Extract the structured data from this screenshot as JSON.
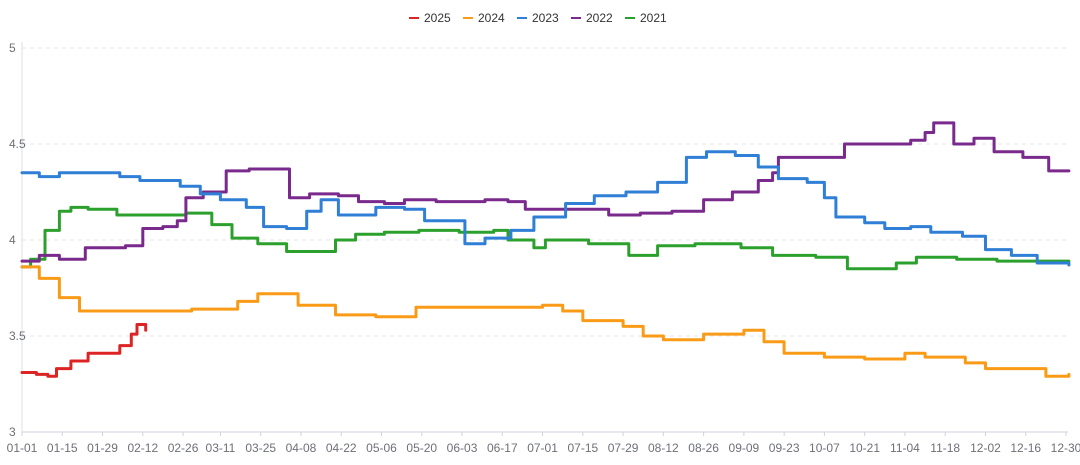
{
  "chart_data": {
    "type": "line",
    "title": "",
    "xlabel": "",
    "ylabel": "",
    "ylim": [
      3,
      5
    ],
    "yticks": [
      "3",
      "3.5",
      "4",
      "4.5",
      "5"
    ],
    "xticks": [
      "01-01",
      "01-15",
      "01-29",
      "02-12",
      "02-26",
      "03-11",
      "03-25",
      "04-08",
      "04-22",
      "05-06",
      "05-20",
      "06-03",
      "06-17",
      "07-01",
      "07-15",
      "07-29",
      "08-12",
      "08-26",
      "09-09",
      "09-23",
      "10-07",
      "10-21",
      "11-04",
      "11-18",
      "12-02",
      "12-16",
      "12-30"
    ],
    "grid": "horizontal dashed",
    "legend_position": "top-center",
    "series": [
      {
        "name": "2025",
        "color": "#dd2424",
        "points": [
          [
            "01-01",
            3.31
          ],
          [
            "01-06",
            3.3
          ],
          [
            "01-10",
            3.29
          ],
          [
            "01-13",
            3.33
          ],
          [
            "01-18",
            3.37
          ],
          [
            "01-24",
            3.41
          ],
          [
            "02-04",
            3.45
          ],
          [
            "02-08",
            3.51
          ],
          [
            "02-10",
            3.56
          ],
          [
            "02-13",
            3.53
          ]
        ]
      },
      {
        "name": "2024",
        "color": "#fa9b17",
        "points": [
          [
            "01-01",
            3.86
          ],
          [
            "01-07",
            3.8
          ],
          [
            "01-14",
            3.7
          ],
          [
            "01-21",
            3.63
          ],
          [
            "01-31",
            3.63
          ],
          [
            "02-29",
            3.64
          ],
          [
            "03-17",
            3.68
          ],
          [
            "03-24",
            3.72
          ],
          [
            "04-07",
            3.66
          ],
          [
            "04-20",
            3.61
          ],
          [
            "05-04",
            3.6
          ],
          [
            "05-18",
            3.65
          ],
          [
            "06-01",
            3.65
          ],
          [
            "06-15",
            3.65
          ],
          [
            "07-01",
            3.66
          ],
          [
            "07-08",
            3.63
          ],
          [
            "07-15",
            3.58
          ],
          [
            "07-29",
            3.55
          ],
          [
            "08-05",
            3.5
          ],
          [
            "08-12",
            3.48
          ],
          [
            "08-26",
            3.51
          ],
          [
            "09-09",
            3.53
          ],
          [
            "09-16",
            3.47
          ],
          [
            "09-23",
            3.41
          ],
          [
            "10-07",
            3.39
          ],
          [
            "10-21",
            3.38
          ],
          [
            "11-04",
            3.41
          ],
          [
            "11-11",
            3.39
          ],
          [
            "11-25",
            3.36
          ],
          [
            "12-02",
            3.33
          ],
          [
            "12-16",
            3.33
          ],
          [
            "12-23",
            3.29
          ],
          [
            "12-31",
            3.3
          ]
        ]
      },
      {
        "name": "2023",
        "color": "#2e7fd5",
        "points": [
          [
            "01-01",
            4.35
          ],
          [
            "01-07",
            4.33
          ],
          [
            "01-14",
            4.35
          ],
          [
            "01-28",
            4.35
          ],
          [
            "02-04",
            4.33
          ],
          [
            "02-11",
            4.31
          ],
          [
            "02-25",
            4.28
          ],
          [
            "03-04",
            4.24
          ],
          [
            "03-11",
            4.21
          ],
          [
            "03-20",
            4.17
          ],
          [
            "03-26",
            4.07
          ],
          [
            "04-03",
            4.06
          ],
          [
            "04-10",
            4.15
          ],
          [
            "04-15",
            4.21
          ],
          [
            "04-21",
            4.13
          ],
          [
            "05-04",
            4.17
          ],
          [
            "05-14",
            4.16
          ],
          [
            "05-21",
            4.1
          ],
          [
            "06-04",
            3.98
          ],
          [
            "06-11",
            4.01
          ],
          [
            "06-20",
            4.05
          ],
          [
            "06-28",
            4.12
          ],
          [
            "07-09",
            4.19
          ],
          [
            "07-19",
            4.23
          ],
          [
            "07-30",
            4.25
          ],
          [
            "08-10",
            4.3
          ],
          [
            "08-20",
            4.43
          ],
          [
            "08-27",
            4.46
          ],
          [
            "09-06",
            4.44
          ],
          [
            "09-14",
            4.38
          ],
          [
            "09-21",
            4.32
          ],
          [
            "10-01",
            4.3
          ],
          [
            "10-07",
            4.22
          ],
          [
            "10-11",
            4.12
          ],
          [
            "10-21",
            4.09
          ],
          [
            "10-28",
            4.06
          ],
          [
            "11-06",
            4.07
          ],
          [
            "11-13",
            4.04
          ],
          [
            "11-24",
            4.02
          ],
          [
            "12-02",
            3.95
          ],
          [
            "12-11",
            3.92
          ],
          [
            "12-20",
            3.88
          ],
          [
            "12-31",
            3.87
          ]
        ]
      },
      {
        "name": "2022",
        "color": "#7a2a8c",
        "points": [
          [
            "01-01",
            3.89
          ],
          [
            "01-07",
            3.92
          ],
          [
            "01-14",
            3.9
          ],
          [
            "01-23",
            3.96
          ],
          [
            "02-06",
            3.97
          ],
          [
            "02-12",
            4.06
          ],
          [
            "02-19",
            4.07
          ],
          [
            "02-24",
            4.1
          ],
          [
            "02-27",
            4.22
          ],
          [
            "03-05",
            4.25
          ],
          [
            "03-13",
            4.36
          ],
          [
            "03-21",
            4.37
          ],
          [
            "03-27",
            4.37
          ],
          [
            "04-04",
            4.22
          ],
          [
            "04-11",
            4.24
          ],
          [
            "04-21",
            4.23
          ],
          [
            "04-28",
            4.2
          ],
          [
            "05-07",
            4.19
          ],
          [
            "05-14",
            4.21
          ],
          [
            "05-25",
            4.2
          ],
          [
            "06-11",
            4.21
          ],
          [
            "06-19",
            4.2
          ],
          [
            "06-25",
            4.16
          ],
          [
            "07-01",
            4.16
          ],
          [
            "07-13",
            4.16
          ],
          [
            "07-24",
            4.13
          ],
          [
            "08-04",
            4.14
          ],
          [
            "08-15",
            4.15
          ],
          [
            "08-26",
            4.21
          ],
          [
            "09-05",
            4.25
          ],
          [
            "09-14",
            4.31
          ],
          [
            "09-19",
            4.35
          ],
          [
            "09-21",
            4.43
          ],
          [
            "10-07",
            4.43
          ],
          [
            "10-14",
            4.5
          ],
          [
            "10-28",
            4.5
          ],
          [
            "11-06",
            4.52
          ],
          [
            "11-11",
            4.56
          ],
          [
            "11-14",
            4.61
          ],
          [
            "11-21",
            4.5
          ],
          [
            "11-28",
            4.53
          ],
          [
            "12-05",
            4.46
          ],
          [
            "12-15",
            4.43
          ],
          [
            "12-24",
            4.36
          ],
          [
            "12-31",
            4.36
          ]
        ]
      },
      {
        "name": "2021",
        "color": "#2ca02c",
        "points": [
          [
            "01-01",
            3.86
          ],
          [
            "01-04",
            3.9
          ],
          [
            "01-09",
            4.05
          ],
          [
            "01-14",
            4.15
          ],
          [
            "01-18",
            4.17
          ],
          [
            "01-24",
            4.16
          ],
          [
            "02-03",
            4.13
          ],
          [
            "02-15",
            4.13
          ],
          [
            "02-27",
            4.14
          ],
          [
            "03-08",
            4.08
          ],
          [
            "03-15",
            4.01
          ],
          [
            "03-24",
            3.98
          ],
          [
            "04-03",
            3.94
          ],
          [
            "04-10",
            3.94
          ],
          [
            "04-20",
            4.0
          ],
          [
            "04-27",
            4.03
          ],
          [
            "05-07",
            4.04
          ],
          [
            "05-19",
            4.05
          ],
          [
            "06-02",
            4.04
          ],
          [
            "06-14",
            4.05
          ],
          [
            "06-19",
            4.0
          ],
          [
            "06-28",
            3.96
          ],
          [
            "07-02",
            4.0
          ],
          [
            "07-17",
            3.98
          ],
          [
            "07-31",
            3.92
          ],
          [
            "08-10",
            3.97
          ],
          [
            "08-23",
            3.98
          ],
          [
            "09-08",
            3.96
          ],
          [
            "09-19",
            3.92
          ],
          [
            "10-04",
            3.91
          ],
          [
            "10-15",
            3.85
          ],
          [
            "10-21",
            3.85
          ],
          [
            "11-01",
            3.88
          ],
          [
            "11-08",
            3.91
          ],
          [
            "11-22",
            3.9
          ],
          [
            "12-06",
            3.89
          ],
          [
            "12-20",
            3.89
          ],
          [
            "12-31",
            3.89
          ]
        ]
      }
    ]
  }
}
